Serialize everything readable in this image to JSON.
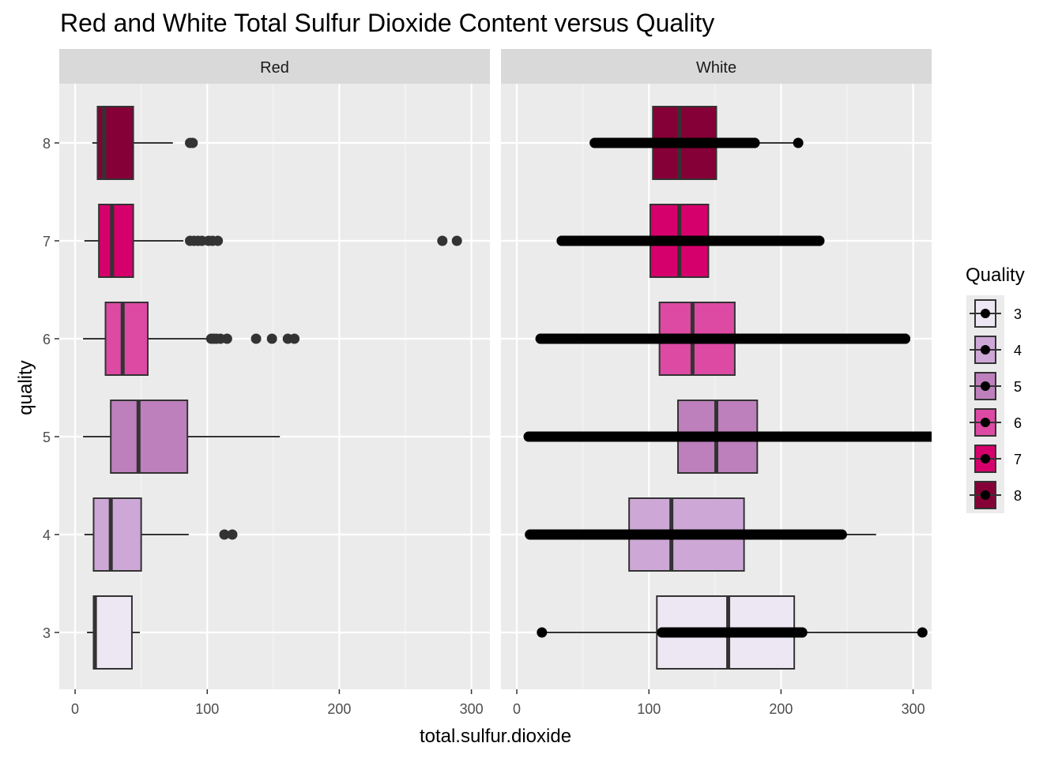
{
  "chart_data": {
    "type": "boxplot",
    "title": "Red and White Total Sulfur Dioxide Content versus Quality",
    "xlabel": "total.sulfur.dioxide",
    "ylabel": "quality",
    "xlim": [
      -12,
      314
    ],
    "x_ticks": [
      0,
      100,
      200,
      300
    ],
    "categories": [
      "3",
      "4",
      "5",
      "6",
      "7",
      "8"
    ],
    "grid": true,
    "legend": {
      "title": "Quality",
      "position": "right",
      "entries": [
        "3",
        "4",
        "5",
        "6",
        "7",
        "8"
      ]
    },
    "colors": {
      "3": "#ece7f2",
      "4": "#cda8d6",
      "5": "#bd80bc",
      "6": "#dc4aa4",
      "7": "#d6006c",
      "8": "#850036"
    },
    "panels": [
      {
        "name": "Red",
        "boxes": [
          {
            "quality": "3",
            "min": 9,
            "q1": 14,
            "median": 15,
            "q3": 43,
            "max": 49,
            "outliers": []
          },
          {
            "quality": "4",
            "min": 7,
            "q1": 14,
            "median": 27,
            "q3": 50,
            "max": 86,
            "outliers": [
              113,
              119
            ]
          },
          {
            "quality": "5",
            "min": 6,
            "q1": 27,
            "median": 48,
            "q3": 85,
            "max": 155,
            "outliers": []
          },
          {
            "quality": "6",
            "min": 6,
            "q1": 23,
            "median": 36,
            "q3": 55,
            "max": 100,
            "outliers": [
              103,
              105,
              107,
              110,
              115,
              137,
              149,
              161,
              166
            ]
          },
          {
            "quality": "7",
            "min": 7,
            "q1": 18,
            "median": 28,
            "q3": 44,
            "max": 82,
            "outliers": [
              87,
              90,
              93,
              96,
              101,
              104,
              108,
              278,
              289
            ]
          },
          {
            "quality": "8",
            "min": 13,
            "q1": 17,
            "median": 22,
            "q3": 44,
            "max": 74,
            "outliers": [
              87,
              89
            ]
          }
        ]
      },
      {
        "name": "White",
        "boxes": [
          {
            "quality": "3",
            "min": 19,
            "q1": 106,
            "median": 160,
            "q3": 210,
            "max": 307,
            "outliers": [],
            "points": [
              19,
              110,
              123,
              134,
              157,
              160,
              163,
              182,
              201,
              216,
              307
            ]
          },
          {
            "quality": "4",
            "min": 10,
            "q1": 85,
            "median": 117,
            "q3": 172,
            "max": 272,
            "outliers": [],
            "points": [
              10,
              31,
              33,
              47,
              52,
              58,
              64,
              70,
              78,
              91,
              100,
              110,
              125,
              140,
              155,
              165,
              172,
              178,
              185,
              190,
              195,
              203,
              210,
              235,
              246
            ]
          },
          {
            "quality": "5",
            "min": 9,
            "q1": 122,
            "median": 151,
            "q3": 182,
            "max": 313,
            "outliers": [],
            "points": [
              9,
              21,
              25,
              30,
              40,
              49,
              55,
              62,
              70,
              80,
              90,
              100,
              120,
              140,
              160,
              180,
              200,
              220,
              235,
              245,
              252,
              258,
              283,
              303,
              313
            ]
          },
          {
            "quality": "6",
            "min": 18,
            "q1": 108,
            "median": 133,
            "q3": 165,
            "max": 294,
            "outliers": [],
            "points": [
              18,
              28,
              36,
              40,
              48,
              56,
              62,
              70,
              80,
              90,
              100,
              120,
              140,
              160,
              180,
              200,
              220,
              235,
              245,
              252,
              272,
              294
            ]
          },
          {
            "quality": "7",
            "min": 34,
            "q1": 101,
            "median": 123,
            "q3": 145,
            "max": 229,
            "outliers": [],
            "points": [
              34,
              38,
              46,
              52,
              60,
              66,
              72,
              80,
              90,
              100,
              120,
              140,
              160,
              180,
              200,
              213,
              229
            ]
          },
          {
            "quality": "8",
            "min": 59,
            "q1": 103,
            "median": 123,
            "q3": 151,
            "max": 213,
            "outliers": [],
            "points": [
              59,
              68,
              72,
              78,
              85,
              92,
              98,
              105,
              112,
              120,
              130,
              140,
              150,
              160,
              170,
              176,
              180,
              213
            ]
          }
        ]
      }
    ]
  }
}
